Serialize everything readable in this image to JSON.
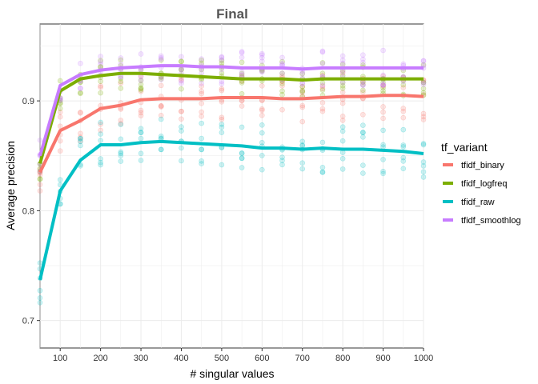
{
  "chart_data": {
    "type": "line",
    "title": "Final",
    "xlabel": "# singular values",
    "ylabel": "Average precision",
    "xlim": [
      50,
      1000
    ],
    "ylim": [
      0.675,
      0.97
    ],
    "x_ticks": [
      100,
      200,
      300,
      400,
      500,
      600,
      700,
      800,
      900,
      1000
    ],
    "y_ticks": [
      0.7,
      0.8,
      0.9
    ],
    "grid": true,
    "legend_title": "tf_variant",
    "legend_position": "right",
    "x": [
      50,
      100,
      150,
      200,
      250,
      300,
      350,
      400,
      450,
      500,
      550,
      600,
      650,
      700,
      750,
      800,
      850,
      900,
      950,
      1000
    ],
    "series": [
      {
        "name": "tfidf_binary",
        "color": "#F8766D",
        "values": [
          0.835,
          0.873,
          0.882,
          0.893,
          0.896,
          0.901,
          0.902,
          0.902,
          0.902,
          0.903,
          0.903,
          0.903,
          0.902,
          0.902,
          0.903,
          0.904,
          0.904,
          0.905,
          0.905,
          0.904
        ]
      },
      {
        "name": "tfidf_logfreq",
        "color": "#7CAE00",
        "values": [
          0.843,
          0.909,
          0.92,
          0.923,
          0.925,
          0.925,
          0.924,
          0.923,
          0.922,
          0.921,
          0.92,
          0.92,
          0.92,
          0.919,
          0.92,
          0.92,
          0.92,
          0.92,
          0.92,
          0.92
        ]
      },
      {
        "name": "tfidf_raw",
        "color": "#00BFC4",
        "values": [
          0.737,
          0.818,
          0.846,
          0.86,
          0.86,
          0.862,
          0.863,
          0.862,
          0.861,
          0.86,
          0.859,
          0.857,
          0.857,
          0.856,
          0.857,
          0.856,
          0.856,
          0.855,
          0.854,
          0.852
        ]
      },
      {
        "name": "tfidf_smoothlog",
        "color": "#C77CFF",
        "values": [
          0.85,
          0.914,
          0.924,
          0.928,
          0.93,
          0.931,
          0.932,
          0.932,
          0.931,
          0.931,
          0.93,
          0.93,
          0.93,
          0.929,
          0.93,
          0.93,
          0.93,
          0.93,
          0.93,
          0.93
        ]
      }
    ]
  }
}
